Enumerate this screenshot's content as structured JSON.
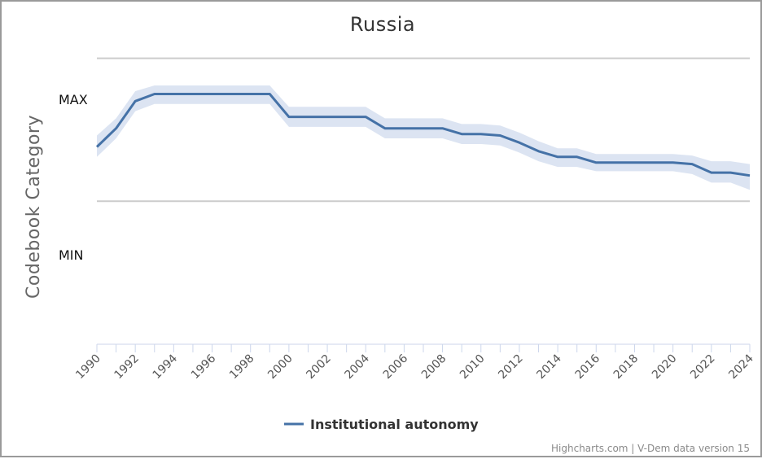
{
  "chart_data": {
    "type": "line",
    "title": "Russia",
    "ylabel": "Codebook Category",
    "y_categories": {
      "max_label": "MAX",
      "min_label": "MIN"
    },
    "xlim": [
      1990,
      2024
    ],
    "x_ticks": [
      "1990",
      "1992",
      "1994",
      "1996",
      "1998",
      "2000",
      "2002",
      "2004",
      "2006",
      "2008",
      "2010",
      "2012",
      "2014",
      "2016",
      "2018",
      "2020",
      "2022",
      "2024"
    ],
    "ylim": [
      -1.0,
      1.1
    ],
    "series": [
      {
        "name": "Institutional autonomy",
        "color": "#4572a7",
        "band_color": "#dce4f2",
        "x": [
          1990,
          1991,
          1992,
          1993,
          1994,
          1995,
          1996,
          1997,
          1998,
          1999,
          2000,
          2001,
          2002,
          2003,
          2004,
          2005,
          2006,
          2007,
          2008,
          2009,
          2010,
          2011,
          2012,
          2013,
          2014,
          2015,
          2016,
          2017,
          2018,
          2019,
          2020,
          2021,
          2022,
          2023,
          2024
        ],
        "y": [
          0.38,
          0.51,
          0.7,
          0.75,
          0.75,
          0.75,
          0.75,
          0.75,
          0.75,
          0.75,
          0.59,
          0.59,
          0.59,
          0.59,
          0.59,
          0.51,
          0.51,
          0.51,
          0.51,
          0.47,
          0.47,
          0.46,
          0.41,
          0.35,
          0.31,
          0.31,
          0.27,
          0.27,
          0.27,
          0.27,
          0.27,
          0.26,
          0.2,
          0.2,
          0.18
        ],
        "upper": [
          0.46,
          0.58,
          0.77,
          0.81,
          0.81,
          0.81,
          0.81,
          0.81,
          0.81,
          0.81,
          0.66,
          0.66,
          0.66,
          0.66,
          0.66,
          0.58,
          0.58,
          0.58,
          0.58,
          0.54,
          0.54,
          0.53,
          0.48,
          0.42,
          0.37,
          0.37,
          0.33,
          0.33,
          0.33,
          0.33,
          0.33,
          0.32,
          0.28,
          0.28,
          0.26
        ],
        "lower": [
          0.31,
          0.44,
          0.63,
          0.68,
          0.68,
          0.68,
          0.68,
          0.68,
          0.68,
          0.68,
          0.52,
          0.52,
          0.52,
          0.52,
          0.52,
          0.44,
          0.44,
          0.44,
          0.44,
          0.4,
          0.4,
          0.39,
          0.34,
          0.28,
          0.24,
          0.24,
          0.21,
          0.21,
          0.21,
          0.21,
          0.21,
          0.19,
          0.13,
          0.13,
          0.08
        ]
      }
    ],
    "gridlines_at": [
      1,
      0
    ],
    "legend_position": "bottom-center"
  },
  "credits": "Highcharts.com | V-Dem data version 15"
}
